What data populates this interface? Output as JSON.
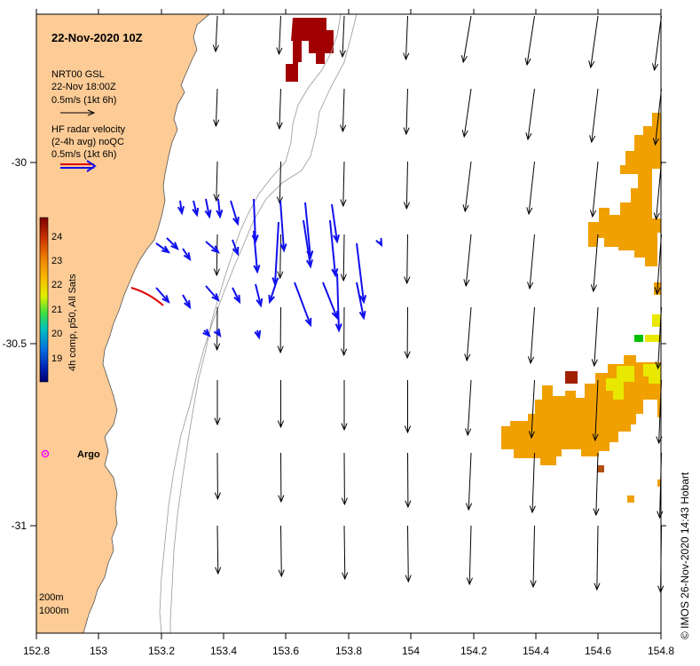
{
  "map": {
    "title": "22-Nov-2020 10Z",
    "lon_ticks": [
      "152.8",
      "153",
      "153.2",
      "153.4",
      "153.6",
      "153.8",
      "154",
      "154.2",
      "154.4",
      "154.6",
      "154.8"
    ],
    "lat_ticks": [
      "-30",
      "-30.5",
      "-31"
    ],
    "legend": {
      "model_name": "NRT00 GSL",
      "model_time": "22-Nov 18:00Z",
      "model_scale": "0.5m/s (1kt 6h)",
      "radar_l1": "HF radar velocity",
      "radar_l2": "(2-4h avg) noQC",
      "radar_scale": "0.5m/s (1kt 6h)"
    },
    "colorbar": {
      "label": "4h comp, p50, All Sats",
      "ticks": [
        "24",
        "23",
        "22",
        "21",
        "20",
        "19"
      ]
    },
    "argo_label": "Argo",
    "depth_labels": [
      "200m",
      "1000m"
    ],
    "credit": "© IMOS 26-Nov-2020 14:43 Hobart",
    "colors": {
      "land": "#fccb96",
      "model_arrow": "#000000",
      "radar_arrow": "#1010ee",
      "argo": "#ff00ff",
      "sst_hot": "#a00000",
      "sst_warm": "#f0a000",
      "sst_mid": "#e8e800"
    }
  }
}
